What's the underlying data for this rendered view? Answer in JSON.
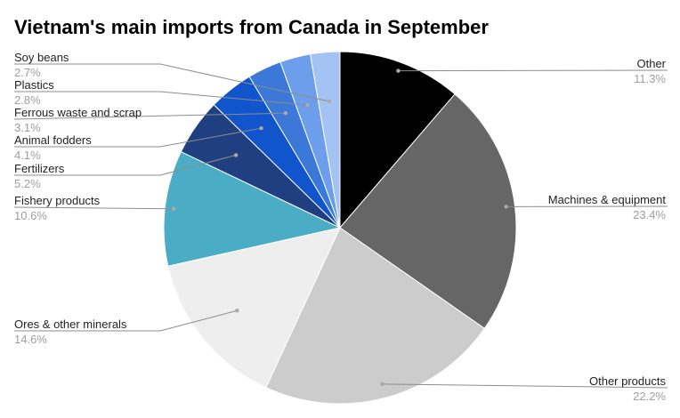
{
  "chart_data": {
    "type": "pie",
    "title": "Vietnam's main imports from Canada in September",
    "slices": [
      {
        "label": "Other",
        "value": 11.3,
        "value_label": "11.3%",
        "color": "#000000"
      },
      {
        "label": "Machines & equipment",
        "value": 23.4,
        "value_label": "23.4%",
        "color": "#666666"
      },
      {
        "label": "Other products",
        "value": 22.2,
        "value_label": "22.2%",
        "color": "#cccccc"
      },
      {
        "label": "Ores & other minerals",
        "value": 14.6,
        "value_label": "14.6%",
        "color": "#eeeeee"
      },
      {
        "label": "Fishery products",
        "value": 10.6,
        "value_label": "10.6%",
        "color": "#4bacc6"
      },
      {
        "label": "Fertilizers",
        "value": 5.2,
        "value_label": "5.2%",
        "color": "#1f3f80"
      },
      {
        "label": "Animal fodders",
        "value": 4.1,
        "value_label": "4.1%",
        "color": "#1155cc"
      },
      {
        "label": "Ferrous waste and scrap",
        "value": 3.1,
        "value_label": "3.1%",
        "color": "#3c78d8"
      },
      {
        "label": "Plastics",
        "value": 2.8,
        "value_label": "2.8%",
        "color": "#6d9eeb"
      },
      {
        "label": "Soy beans",
        "value": 2.7,
        "value_label": "2.7%",
        "color": "#a4c2f4"
      }
    ]
  }
}
